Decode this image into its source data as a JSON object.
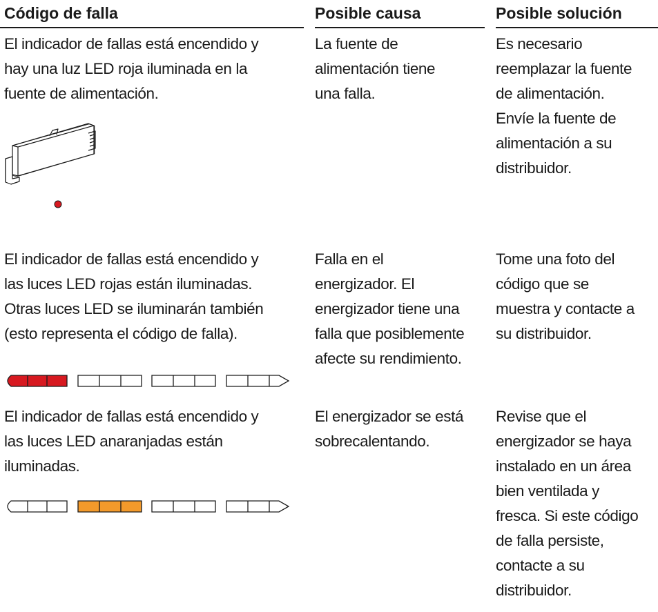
{
  "header": {
    "columns": [
      "Código de falla",
      "Posible causa",
      "Posible solución"
    ]
  },
  "rows": [
    {
      "fault": [
        "El indicador de fallas está encendido y",
        "hay una luz LED roja iluminada en la",
        "fuente de alimentación."
      ],
      "cause": [
        "La fuente de",
        "alimentación tiene",
        "una falla."
      ],
      "solution": [
        "Es necesario",
        "reemplazar la fuente",
        "de alimentación.",
        "Envíe la fuente de",
        "alimentación a su",
        "distribuidor."
      ]
    },
    {
      "fault": [
        "El indicador de fallas está encendido y",
        "las luces LED rojas están iluminadas.",
        "Otras luces LED se iluminarán también",
        "(esto representa el código de falla)."
      ],
      "cause": [
        "Falla en el",
        "energizador. El",
        "energizador tiene una",
        "falla que posiblemente",
        "afecte su rendimiento."
      ],
      "solution": [
        "Tome una foto del",
        "código que se",
        "muestra y contacte a",
        "su distribuidor."
      ]
    },
    {
      "fault": [
        "El indicador de fallas está encendido y",
        "las luces LED anaranjadas están",
        "iluminadas."
      ],
      "cause": [
        "El energizador se está",
        "sobrecalentando."
      ],
      "solution": [
        "Revise que el",
        "energizador se haya",
        "instalado en un área",
        "bien ventilada y",
        "fresca. Si este código",
        "de falla persiste,",
        "contacte a su",
        "distribuidor."
      ]
    }
  ]
}
